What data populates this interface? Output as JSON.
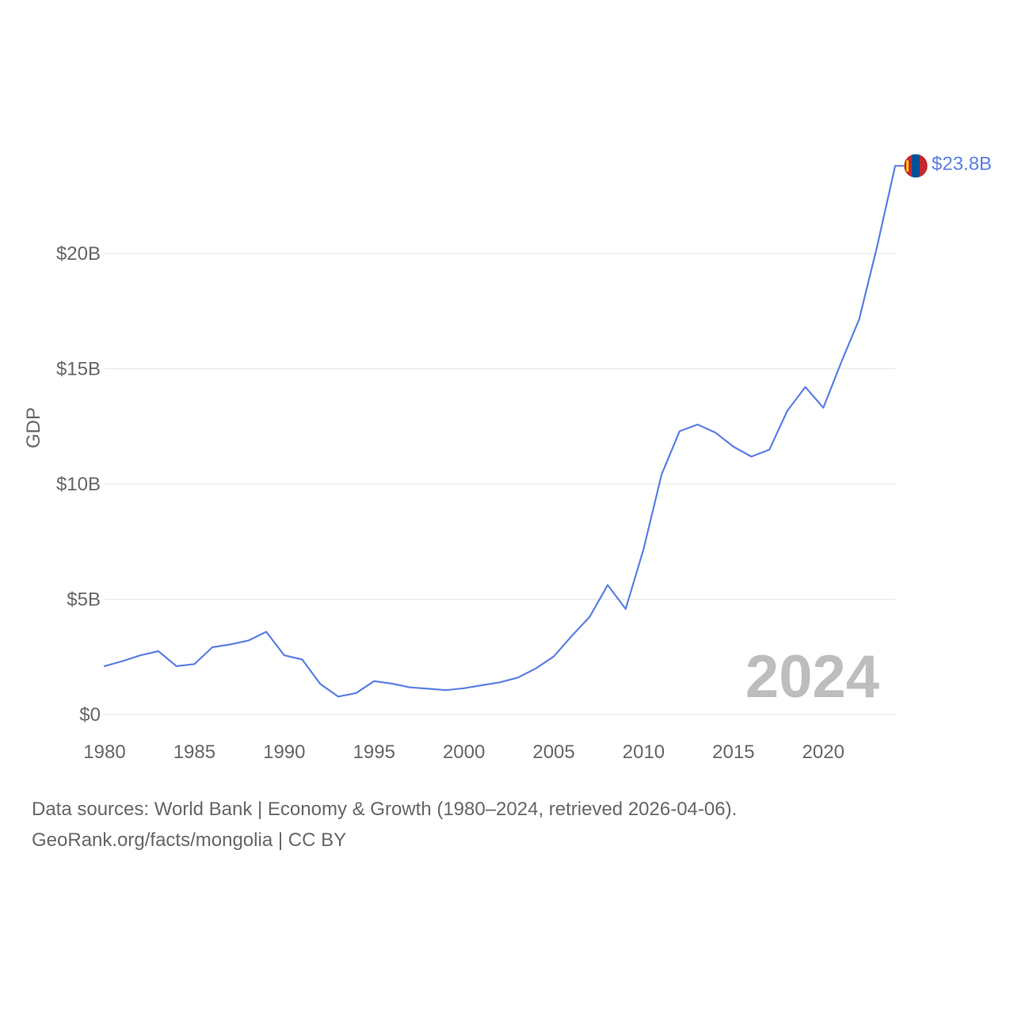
{
  "chart_data": {
    "type": "line",
    "ylabel": "GDP",
    "xlim": [
      1980,
      2024
    ],
    "ylim": [
      0,
      25
    ],
    "y_ticks": [
      {
        "value": 0,
        "label": "$0"
      },
      {
        "value": 5,
        "label": "$5B"
      },
      {
        "value": 10,
        "label": "$10B"
      },
      {
        "value": 15,
        "label": "$15B"
      },
      {
        "value": 20,
        "label": "$20B"
      }
    ],
    "x_ticks": [
      {
        "value": 1980,
        "label": "1980"
      },
      {
        "value": 1985,
        "label": "1985"
      },
      {
        "value": 1990,
        "label": "1990"
      },
      {
        "value": 1995,
        "label": "1995"
      },
      {
        "value": 2000,
        "label": "2000"
      },
      {
        "value": 2005,
        "label": "2005"
      },
      {
        "value": 2010,
        "label": "2010"
      },
      {
        "value": 2015,
        "label": "2015"
      },
      {
        "value": 2020,
        "label": "2020"
      }
    ],
    "grid": true,
    "series": [
      {
        "name": "Mongolia",
        "color": "#5b7fe3",
        "x": [
          1980,
          1981,
          1982,
          1983,
          1984,
          1985,
          1986,
          1987,
          1988,
          1989,
          1990,
          1991,
          1992,
          1993,
          1994,
          1995,
          1996,
          1997,
          1998,
          1999,
          2000,
          2001,
          2002,
          2003,
          2004,
          2005,
          2006,
          2007,
          2008,
          2009,
          2010,
          2011,
          2012,
          2013,
          2014,
          2015,
          2016,
          2017,
          2018,
          2019,
          2020,
          2021,
          2022,
          2023,
          2024
        ],
        "values": [
          2.1,
          2.32,
          2.57,
          2.75,
          2.1,
          2.19,
          2.92,
          3.04,
          3.21,
          3.59,
          2.57,
          2.39,
          1.33,
          0.78,
          0.93,
          1.45,
          1.34,
          1.18,
          1.12,
          1.06,
          1.14,
          1.27,
          1.4,
          1.6,
          2.0,
          2.52,
          3.41,
          4.24,
          5.62,
          4.58,
          7.19,
          10.41,
          12.29,
          12.58,
          12.23,
          11.62,
          11.19,
          11.49,
          13.18,
          14.21,
          13.31,
          15.29,
          17.15,
          20.32,
          23.8
        ]
      }
    ],
    "end_label": "$23.8B",
    "year_label": "2024"
  },
  "flag": {
    "icon": "mongolia-flag-icon",
    "red": "#c4272f",
    "blue": "#015197",
    "gold": "#f9cf02"
  },
  "source": {
    "line1": "Data sources: World Bank | Economy & Growth (1980–2024, retrieved 2026-04-06).",
    "line2": "GeoRank.org/facts/mongolia | CC BY"
  }
}
